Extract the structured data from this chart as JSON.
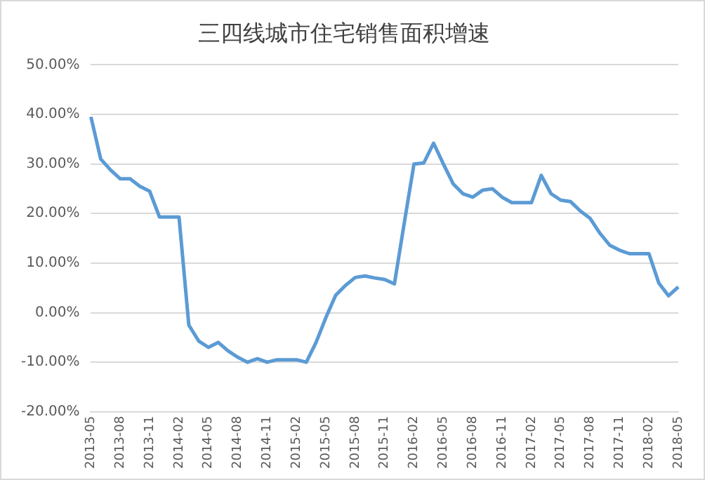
{
  "chart_data": {
    "type": "line",
    "title": "三四线城市住宅销售面积增速",
    "categories": [
      "2013-05",
      null,
      null,
      "2013-08",
      null,
      null,
      "2013-11",
      null,
      null,
      "2014-02",
      null,
      null,
      "2014-05",
      null,
      null,
      "2014-08",
      null,
      null,
      "2014-11",
      null,
      null,
      "2015-02",
      null,
      null,
      "2015-05",
      null,
      null,
      "2015-08",
      null,
      null,
      "2015-11",
      null,
      null,
      "2016-02",
      null,
      null,
      "2016-05",
      null,
      null,
      "2016-08",
      null,
      null,
      "2016-11",
      null,
      null,
      "2017-02",
      null,
      null,
      "2017-05",
      null,
      null,
      "2017-08",
      null,
      null,
      "2017-11",
      null,
      null,
      "2018-02",
      null,
      null,
      "2018-05"
    ],
    "series": [
      {
        "color": "#5b9bd5",
        "values": [
          39.5,
          31,
          28.8,
          27,
          27,
          25.5,
          24.5,
          19.3,
          19.3,
          19.3,
          -2.5,
          -5.7,
          -7,
          -6,
          -7.7,
          -9,
          -10,
          -9.3,
          -10,
          -9.5,
          -9.5,
          -9.5,
          -10,
          -6,
          -1,
          3.5,
          5.5,
          7.1,
          7.4,
          7,
          6.7,
          5.8,
          18,
          30,
          30.2,
          34.2,
          30,
          26,
          24,
          23.3,
          24.7,
          25,
          23.3,
          22.2,
          22.2,
          22.2,
          27.7,
          24,
          22.7,
          22.4,
          20.5,
          19,
          16,
          13.6,
          12.6,
          11.9,
          11.9,
          11.9,
          6,
          3.4,
          5.2
        ]
      }
    ],
    "ylim": [
      -20,
      50
    ],
    "yticks": [
      {
        "value": -20,
        "label": "-20.00%"
      },
      {
        "value": -10,
        "label": "-10.00%"
      },
      {
        "value": 0,
        "label": "0.00%"
      },
      {
        "value": 10,
        "label": "10.00%"
      },
      {
        "value": 20,
        "label": "20.00%"
      },
      {
        "value": 30,
        "label": "30.00%"
      },
      {
        "value": 40,
        "label": "40.00%"
      },
      {
        "value": 50,
        "label": "50.00%"
      }
    ],
    "grid": "y",
    "legend": false,
    "marker": "none",
    "line_style": "solid"
  }
}
